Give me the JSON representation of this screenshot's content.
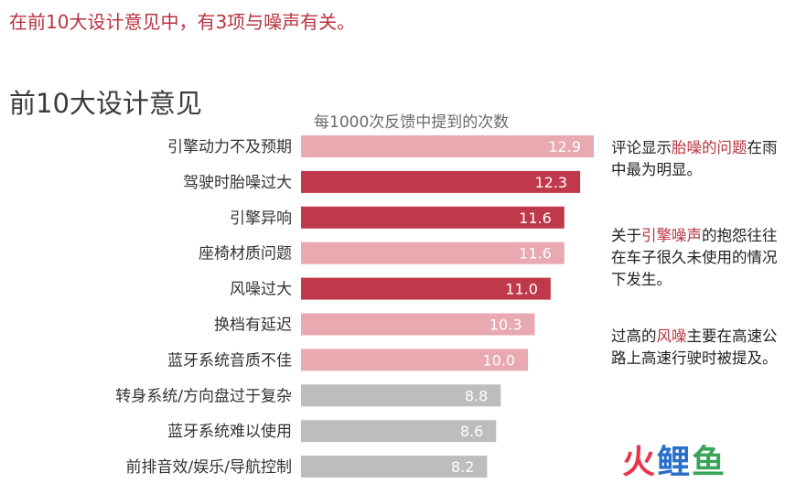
{
  "headline": "在前10大设计意见中，有3项与噪声有关。",
  "chart_data": {
    "type": "bar",
    "orientation": "horizontal",
    "title": "前10大设计意见",
    "subtitle": "每1000次反馈中提到的次数",
    "categories": [
      "引擎动力不及预期",
      "驾驶时胎噪过大",
      "引擎异响",
      "座椅材质问题",
      "风噪过大",
      "换档有延迟",
      "蓝牙系统音质不佳",
      "转身系统/方向盘过于复杂",
      "蓝牙系统难以使用",
      "前排音效/娱乐/导航控制"
    ],
    "values": [
      12.9,
      12.3,
      11.6,
      11.6,
      11.0,
      10.3,
      10.0,
      8.8,
      8.6,
      8.2
    ],
    "value_labels": [
      "12.9",
      "12.3",
      "11.6",
      "11.6",
      "11.0",
      "10.3",
      "10.0",
      "8.8",
      "8.6",
      "8.2"
    ],
    "bar_colors": [
      "#e8a9b1",
      "#c0394a",
      "#c0394a",
      "#e8a9b1",
      "#c0394a",
      "#e8a9b1",
      "#e8a9b1",
      "#bdbdbd",
      "#bdbdbd",
      "#bdbdbd"
    ]
  },
  "notes": [
    [
      {
        "t": "评论显示",
        "hl": false
      },
      {
        "t": "胎噪的问题",
        "hl": true
      },
      {
        "t": "在雨中最为明显。",
        "hl": false
      }
    ],
    [
      {
        "t": "关于",
        "hl": false
      },
      {
        "t": "引擎噪声",
        "hl": true
      },
      {
        "t": "的抱怨往往在车子很久未使用的情况下发生。",
        "hl": false
      }
    ],
    [
      {
        "t": "过高的",
        "hl": false
      },
      {
        "t": "风噪",
        "hl": true
      },
      {
        "t": "主要在高速公路上高速行驶时被提及。",
        "hl": false
      }
    ]
  ],
  "logo": {
    "part1": "火",
    "part2": "鲤",
    "part3": "鱼"
  }
}
